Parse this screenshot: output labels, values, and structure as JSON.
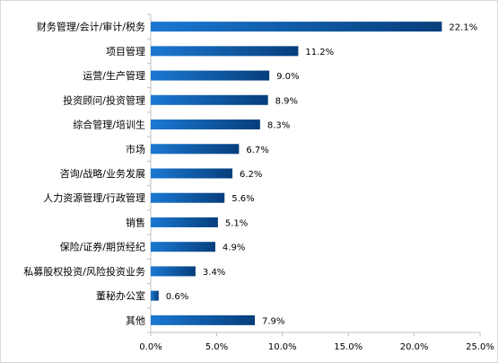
{
  "chart_data": {
    "type": "bar",
    "orientation": "horizontal",
    "categories": [
      "财务管理/会计/审计/税务",
      "项目管理",
      "运营/生产管理",
      "投资顾问/投资管理",
      "综合管理/培训生",
      "市场",
      "咨询/战略/业务发展",
      "人力资源管理/行政管理",
      "销售",
      "保险/证券/期货经纪",
      "私募股权投资/风险投资业务",
      "董秘办公室",
      "其他"
    ],
    "values": [
      22.1,
      11.2,
      9.0,
      8.9,
      8.3,
      6.7,
      6.2,
      5.6,
      5.1,
      4.9,
      3.4,
      0.6,
      7.9
    ],
    "value_labels": [
      "22.1%",
      "11.2%",
      "9.0%",
      "8.9%",
      "8.3%",
      "6.7%",
      "6.2%",
      "5.6%",
      "5.1%",
      "4.9%",
      "3.4%",
      "0.6%",
      "7.9%"
    ],
    "xlim": [
      0,
      25
    ],
    "x_ticks": [
      0,
      5,
      10,
      15,
      20,
      25
    ],
    "x_tick_labels": [
      "0.0%",
      "5.0%",
      "10.0%",
      "15.0%",
      "20.0%",
      "25.0%"
    ],
    "grid": false,
    "legend": "none",
    "bar_gradient": [
      "#1b78d2",
      "#063e7c"
    ],
    "title": "",
    "xlabel": "",
    "ylabel": ""
  }
}
